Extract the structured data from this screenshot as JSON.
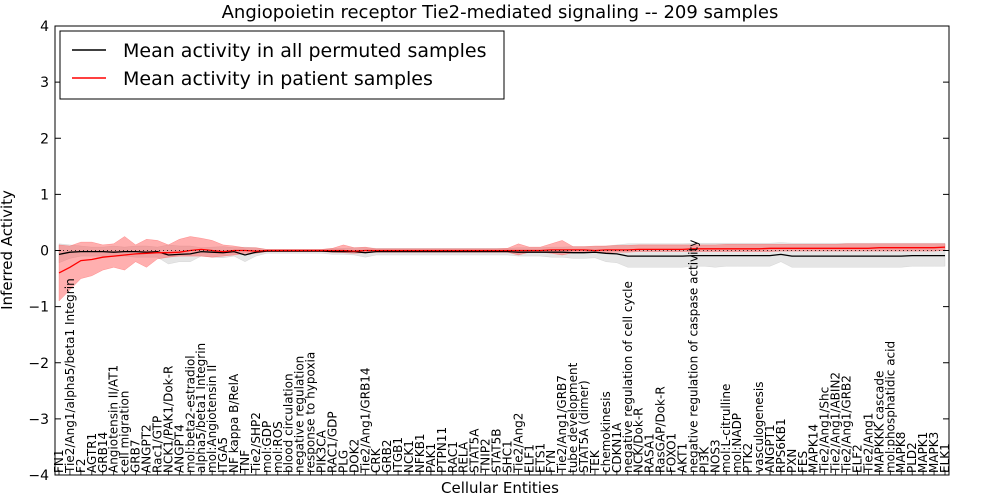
{
  "chart_data": {
    "type": "line",
    "title": "Angiopoietin receptor Tie2-mediated signaling -- 209 samples",
    "xlabel": "Cellular Entities",
    "ylabel": "Inferred Activity",
    "ylim": [
      -4,
      4
    ],
    "yticks": [
      -4,
      -3,
      -2,
      -1,
      0,
      1,
      2,
      3,
      4
    ],
    "legend_position": "top-left",
    "grid": false,
    "categories": [
      "FN1",
      "Tie2/Ang1/alpha5/beta1 Integrin",
      "F2",
      "AGTR1",
      "GRB14",
      "Angiotensin II/AT1",
      "cell migration",
      "GRB7",
      "ANGPT2",
      "Rac1/GTP",
      "NCK1/PAK1/Dok-R",
      "ANGPT4",
      "mol:beta2-estradiol",
      "alpha5/beta1 Integrin",
      "mol:Angiotensin II",
      "ITGA5",
      "NF kappa B/RelA",
      "TNF",
      "Tie2/SHP2",
      "mol:GDP",
      "mol:ROS",
      "blood circulation",
      "negative regulation",
      "response to hypoxia",
      "PIK3CA",
      "RAC1/GDP",
      "PLG",
      "DOK2",
      "Tie2/Ang1/GRB14",
      "CRK",
      "GRB2",
      "ITGB1",
      "NCK1",
      "NFKB1",
      "PAK1",
      "PTPN11",
      "RAC1",
      "RELA",
      "STAT5A",
      "TNIP2",
      "STAT5B",
      "SHC1",
      "Tie2/Ang2",
      "ELF1",
      "ETS1",
      "FYN",
      "Tie2/Ang1/GRB7",
      "tube development",
      "STAT5A (dimer)",
      "TEK",
      "chemokinesis",
      "CDKN1A",
      "negative regulation of cell cycle",
      "NCK/Dok-R",
      "RASA1",
      "RasGAP/Dok-R",
      "FOXO1",
      "AKT1",
      "negative regulation of caspase activity",
      "PI3K",
      "NOS3",
      "mol:L-citrulline",
      "mol:NADP",
      "PTK2",
      "vasculogenesis",
      "ANGPT1",
      "RPS6KB1",
      "PXN",
      "FES",
      "MAPK14",
      "Tie2/Ang1/Shc",
      "Tie2/Ang1/ABIN2",
      "Tie2/Ang1/GRB2",
      "ELF2",
      "Tie2/Ang1",
      "MAPKKK cascade",
      "mol:phosphatidic acid",
      "MAPK8",
      "PLD2",
      "MAPK1",
      "MAPK3",
      "ELK1"
    ],
    "series": [
      {
        "name": "Mean activity in all permuted samples",
        "color": "#000000",
        "values": [
          -0.07,
          -0.03,
          -0.02,
          -0.02,
          -0.02,
          -0.03,
          -0.02,
          -0.02,
          -0.03,
          -0.02,
          -0.08,
          -0.07,
          -0.06,
          -0.02,
          -0.03,
          -0.04,
          -0.02,
          -0.08,
          -0.03,
          -0.01,
          -0.01,
          -0.01,
          -0.01,
          -0.01,
          -0.01,
          -0.02,
          -0.02,
          -0.02,
          -0.04,
          -0.02,
          -0.02,
          -0.02,
          -0.02,
          -0.02,
          -0.02,
          -0.02,
          -0.02,
          -0.02,
          -0.02,
          -0.02,
          -0.02,
          -0.02,
          -0.03,
          -0.03,
          -0.03,
          -0.03,
          -0.03,
          -0.04,
          -0.04,
          -0.03,
          -0.05,
          -0.06,
          -0.1,
          -0.1,
          -0.1,
          -0.1,
          -0.1,
          -0.1,
          -0.09,
          -0.09,
          -0.09,
          -0.09,
          -0.09,
          -0.09,
          -0.09,
          -0.09,
          -0.07,
          -0.1,
          -0.1,
          -0.1,
          -0.1,
          -0.1,
          -0.1,
          -0.1,
          -0.1,
          -0.1,
          -0.1,
          -0.1,
          -0.09,
          -0.09,
          -0.09,
          -0.09
        ],
        "lower": [
          -0.22,
          -0.14,
          -0.1,
          -0.1,
          -0.1,
          -0.11,
          -0.1,
          -0.12,
          -0.12,
          -0.12,
          -0.24,
          -0.2,
          -0.2,
          -0.1,
          -0.12,
          -0.13,
          -0.1,
          -0.2,
          -0.1,
          -0.05,
          -0.05,
          -0.05,
          -0.05,
          -0.05,
          -0.05,
          -0.07,
          -0.07,
          -0.08,
          -0.12,
          -0.08,
          -0.08,
          -0.08,
          -0.08,
          -0.08,
          -0.08,
          -0.08,
          -0.08,
          -0.08,
          -0.08,
          -0.08,
          -0.08,
          -0.08,
          -0.1,
          -0.1,
          -0.1,
          -0.12,
          -0.12,
          -0.14,
          -0.14,
          -0.13,
          -0.2,
          -0.22,
          -0.3,
          -0.3,
          -0.3,
          -0.3,
          -0.3,
          -0.3,
          -0.28,
          -0.28,
          -0.3,
          -0.28,
          -0.28,
          -0.28,
          -0.28,
          -0.28,
          -0.2,
          -0.3,
          -0.3,
          -0.3,
          -0.3,
          -0.3,
          -0.3,
          -0.3,
          -0.3,
          -0.3,
          -0.3,
          -0.3,
          -0.28,
          -0.28,
          -0.28,
          -0.28
        ],
        "upper": [
          0.12,
          0.1,
          0.08,
          0.06,
          0.06,
          0.08,
          0.06,
          0.08,
          0.08,
          0.06,
          0.1,
          0.08,
          0.08,
          0.05,
          0.06,
          0.07,
          0.05,
          0.06,
          0.05,
          0.02,
          0.02,
          0.02,
          0.02,
          0.02,
          0.02,
          0.04,
          0.04,
          0.05,
          0.05,
          0.04,
          0.04,
          0.04,
          0.04,
          0.04,
          0.04,
          0.04,
          0.04,
          0.04,
          0.04,
          0.04,
          0.04,
          0.04,
          0.05,
          0.05,
          0.05,
          0.06,
          0.06,
          0.07,
          0.07,
          0.07,
          0.08,
          0.1,
          0.12,
          0.12,
          0.12,
          0.12,
          0.12,
          0.12,
          0.13,
          0.13,
          0.13,
          0.13,
          0.13,
          0.13,
          0.13,
          0.13,
          0.14,
          0.13,
          0.13,
          0.13,
          0.13,
          0.13,
          0.13,
          0.13,
          0.13,
          0.13,
          0.13,
          0.13,
          0.13,
          0.13,
          0.13,
          0.13
        ]
      },
      {
        "name": "Mean activity in patient samples",
        "color": "#ff0000",
        "values": [
          -0.4,
          -0.3,
          -0.18,
          -0.16,
          -0.12,
          -0.1,
          -0.08,
          -0.06,
          -0.05,
          -0.04,
          -0.04,
          -0.03,
          0.0,
          0.02,
          0.0,
          -0.02,
          0.0,
          0.0,
          -0.01,
          0.0,
          0.0,
          0.0,
          0.0,
          0.0,
          0.0,
          0.0,
          0.0,
          -0.01,
          0.0,
          0.0,
          0.0,
          0.0,
          0.0,
          0.0,
          0.0,
          0.0,
          0.0,
          0.0,
          0.0,
          0.0,
          0.0,
          0.0,
          0.0,
          0.0,
          0.0,
          0.01,
          0.01,
          0.01,
          0.01,
          0.0,
          0.01,
          0.01,
          0.01,
          0.02,
          0.02,
          0.02,
          0.02,
          0.02,
          0.03,
          0.03,
          0.03,
          0.03,
          0.03,
          0.03,
          0.03,
          0.04,
          0.04,
          0.04,
          0.04,
          0.04,
          0.04,
          0.04,
          0.04,
          0.04,
          0.04,
          0.05,
          0.05,
          0.05,
          0.05,
          0.05,
          0.05,
          0.06
        ],
        "lower": [
          -0.9,
          -0.7,
          -0.5,
          -0.45,
          -0.35,
          -0.3,
          -0.35,
          -0.2,
          -0.3,
          -0.15,
          -0.12,
          -0.1,
          -0.1,
          -0.1,
          -0.12,
          -0.1,
          -0.08,
          -0.05,
          -0.05,
          -0.02,
          -0.02,
          -0.02,
          -0.02,
          -0.02,
          -0.02,
          -0.03,
          -0.04,
          -0.05,
          -0.04,
          -0.03,
          -0.03,
          -0.03,
          -0.03,
          -0.03,
          -0.03,
          -0.03,
          -0.03,
          -0.03,
          -0.03,
          -0.03,
          -0.03,
          -0.03,
          -0.08,
          -0.03,
          -0.03,
          -0.05,
          -0.08,
          -0.04,
          -0.04,
          -0.04,
          -0.04,
          -0.03,
          -0.03,
          -0.02,
          -0.02,
          -0.02,
          -0.02,
          -0.02,
          -0.02,
          -0.02,
          -0.02,
          -0.02,
          -0.02,
          -0.02,
          -0.02,
          -0.02,
          -0.01,
          -0.01,
          -0.01,
          -0.01,
          -0.01,
          -0.01,
          -0.01,
          -0.01,
          -0.01,
          -0.01,
          -0.01,
          -0.01,
          -0.01,
          -0.01,
          -0.01,
          0.0
        ],
        "upper": [
          0.1,
          0.08,
          0.15,
          0.15,
          0.1,
          0.12,
          0.25,
          0.1,
          0.2,
          0.18,
          0.1,
          0.2,
          0.25,
          0.22,
          0.18,
          0.1,
          0.08,
          0.05,
          0.05,
          0.02,
          0.02,
          0.02,
          0.02,
          0.02,
          0.02,
          0.04,
          0.1,
          0.05,
          0.06,
          0.03,
          0.03,
          0.03,
          0.03,
          0.03,
          0.03,
          0.03,
          0.03,
          0.03,
          0.03,
          0.03,
          0.03,
          0.04,
          0.12,
          0.06,
          0.06,
          0.12,
          0.18,
          0.07,
          0.07,
          0.08,
          0.08,
          0.09,
          0.09,
          0.1,
          0.1,
          0.1,
          0.1,
          0.1,
          0.1,
          0.1,
          0.1,
          0.11,
          0.11,
          0.11,
          0.11,
          0.11,
          0.11,
          0.11,
          0.11,
          0.11,
          0.11,
          0.11,
          0.12,
          0.12,
          0.12,
          0.12,
          0.12,
          0.12,
          0.12,
          0.12,
          0.12,
          0.12
        ]
      }
    ]
  }
}
